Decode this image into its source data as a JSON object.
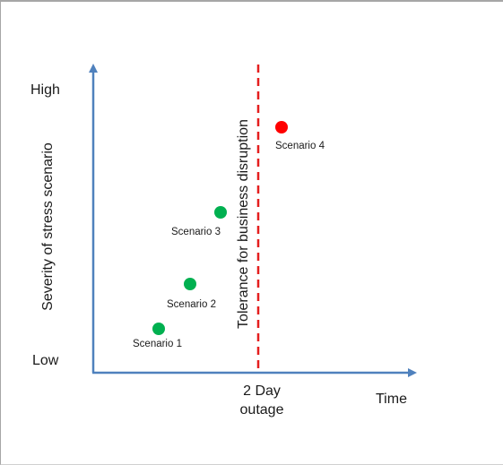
{
  "diagram": {
    "y_axis": {
      "label": "Severity of stress scenario",
      "high_label": "High",
      "low_label": "Low"
    },
    "x_axis": {
      "label": "Time",
      "marker_line1": "2 Day",
      "marker_line2": "outage"
    },
    "tolerance_label": "Tolerance for business disruption",
    "colors": {
      "axis": "#4f81bd",
      "tolerance_line": "#e41e1e",
      "within_tolerance": "#00b050",
      "beyond_tolerance": "#ff0000"
    },
    "scenarios": [
      {
        "label": "Scenario 1",
        "status": "within"
      },
      {
        "label": "Scenario 2",
        "status": "within"
      },
      {
        "label": "Scenario 3",
        "status": "within"
      },
      {
        "label": "Scenario 4",
        "status": "beyond"
      }
    ]
  }
}
